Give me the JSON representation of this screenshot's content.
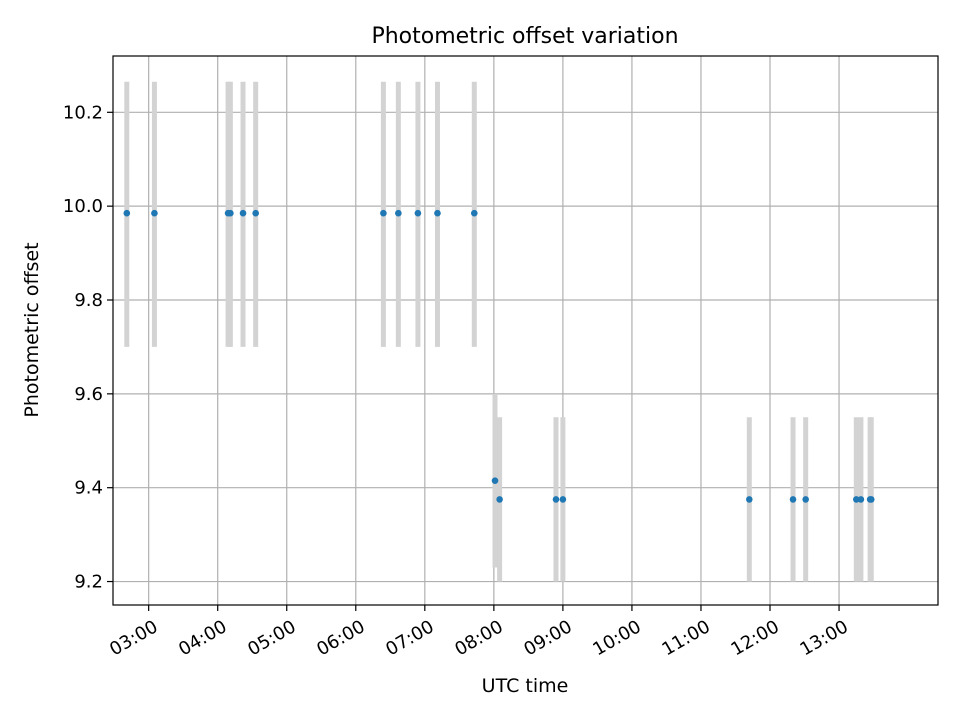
{
  "chart_data": {
    "type": "scatter",
    "title": "Photometric offset variation",
    "xlabel": "UTC time",
    "ylabel": "Photometric offset",
    "x_tick_labels": [
      "03:00",
      "04:00",
      "05:00",
      "06:00",
      "07:00",
      "08:00",
      "09:00",
      "10:00",
      "11:00",
      "12:00",
      "13:00"
    ],
    "y_tick_labels": [
      "9.2",
      "9.4",
      "9.6",
      "9.8",
      "10.0",
      "10.2"
    ],
    "xlim": [
      "02:29",
      "14:26"
    ],
    "ylim": [
      9.15,
      10.32
    ],
    "grid": true,
    "series": [
      {
        "points": [
          {
            "x": "02:41",
            "y": 9.985,
            "yerr_low": 9.7,
            "yerr_high": 10.265
          },
          {
            "x": "03:05",
            "y": 9.985,
            "yerr_low": 9.7,
            "yerr_high": 10.265
          },
          {
            "x": "04:09",
            "y": 9.985,
            "yerr_low": 9.7,
            "yerr_high": 10.265
          },
          {
            "x": "04:11",
            "y": 9.985,
            "yerr_low": 9.7,
            "yerr_high": 10.265
          },
          {
            "x": "04:22",
            "y": 9.985,
            "yerr_low": 9.7,
            "yerr_high": 10.265
          },
          {
            "x": "04:33",
            "y": 9.985,
            "yerr_low": 9.7,
            "yerr_high": 10.265
          },
          {
            "x": "06:24",
            "y": 9.985,
            "yerr_low": 9.7,
            "yerr_high": 10.265
          },
          {
            "x": "06:37",
            "y": 9.985,
            "yerr_low": 9.7,
            "yerr_high": 10.265
          },
          {
            "x": "06:54",
            "y": 9.985,
            "yerr_low": 9.7,
            "yerr_high": 10.265
          },
          {
            "x": "07:11",
            "y": 9.985,
            "yerr_low": 9.7,
            "yerr_high": 10.265
          },
          {
            "x": "07:43",
            "y": 9.985,
            "yerr_low": 9.7,
            "yerr_high": 10.265
          },
          {
            "x": "08:01",
            "y": 9.415,
            "yerr_low": 9.23,
            "yerr_high": 9.6
          },
          {
            "x": "08:05",
            "y": 9.375,
            "yerr_low": 9.2,
            "yerr_high": 9.55
          },
          {
            "x": "08:54",
            "y": 9.375,
            "yerr_low": 9.2,
            "yerr_high": 9.55
          },
          {
            "x": "09:00",
            "y": 9.375,
            "yerr_low": 9.2,
            "yerr_high": 9.55
          },
          {
            "x": "11:42",
            "y": 9.375,
            "yerr_low": 9.2,
            "yerr_high": 9.55
          },
          {
            "x": "12:20",
            "y": 9.375,
            "yerr_low": 9.2,
            "yerr_high": 9.55
          },
          {
            "x": "12:31",
            "y": 9.375,
            "yerr_low": 9.2,
            "yerr_high": 9.55
          },
          {
            "x": "13:15",
            "y": 9.375,
            "yerr_low": 9.2,
            "yerr_high": 9.55
          },
          {
            "x": "13:19",
            "y": 9.375,
            "yerr_low": 9.2,
            "yerr_high": 9.55
          },
          {
            "x": "13:27",
            "y": 9.375,
            "yerr_low": 9.2,
            "yerr_high": 9.55
          },
          {
            "x": "13:28",
            "y": 9.375,
            "yerr_low": 9.2,
            "yerr_high": 9.55
          }
        ]
      }
    ],
    "colors": {
      "marker": "#1f77b4",
      "errorbar": "#d3d3d3",
      "grid": "#b0b0b0",
      "axes": "#000000"
    }
  }
}
